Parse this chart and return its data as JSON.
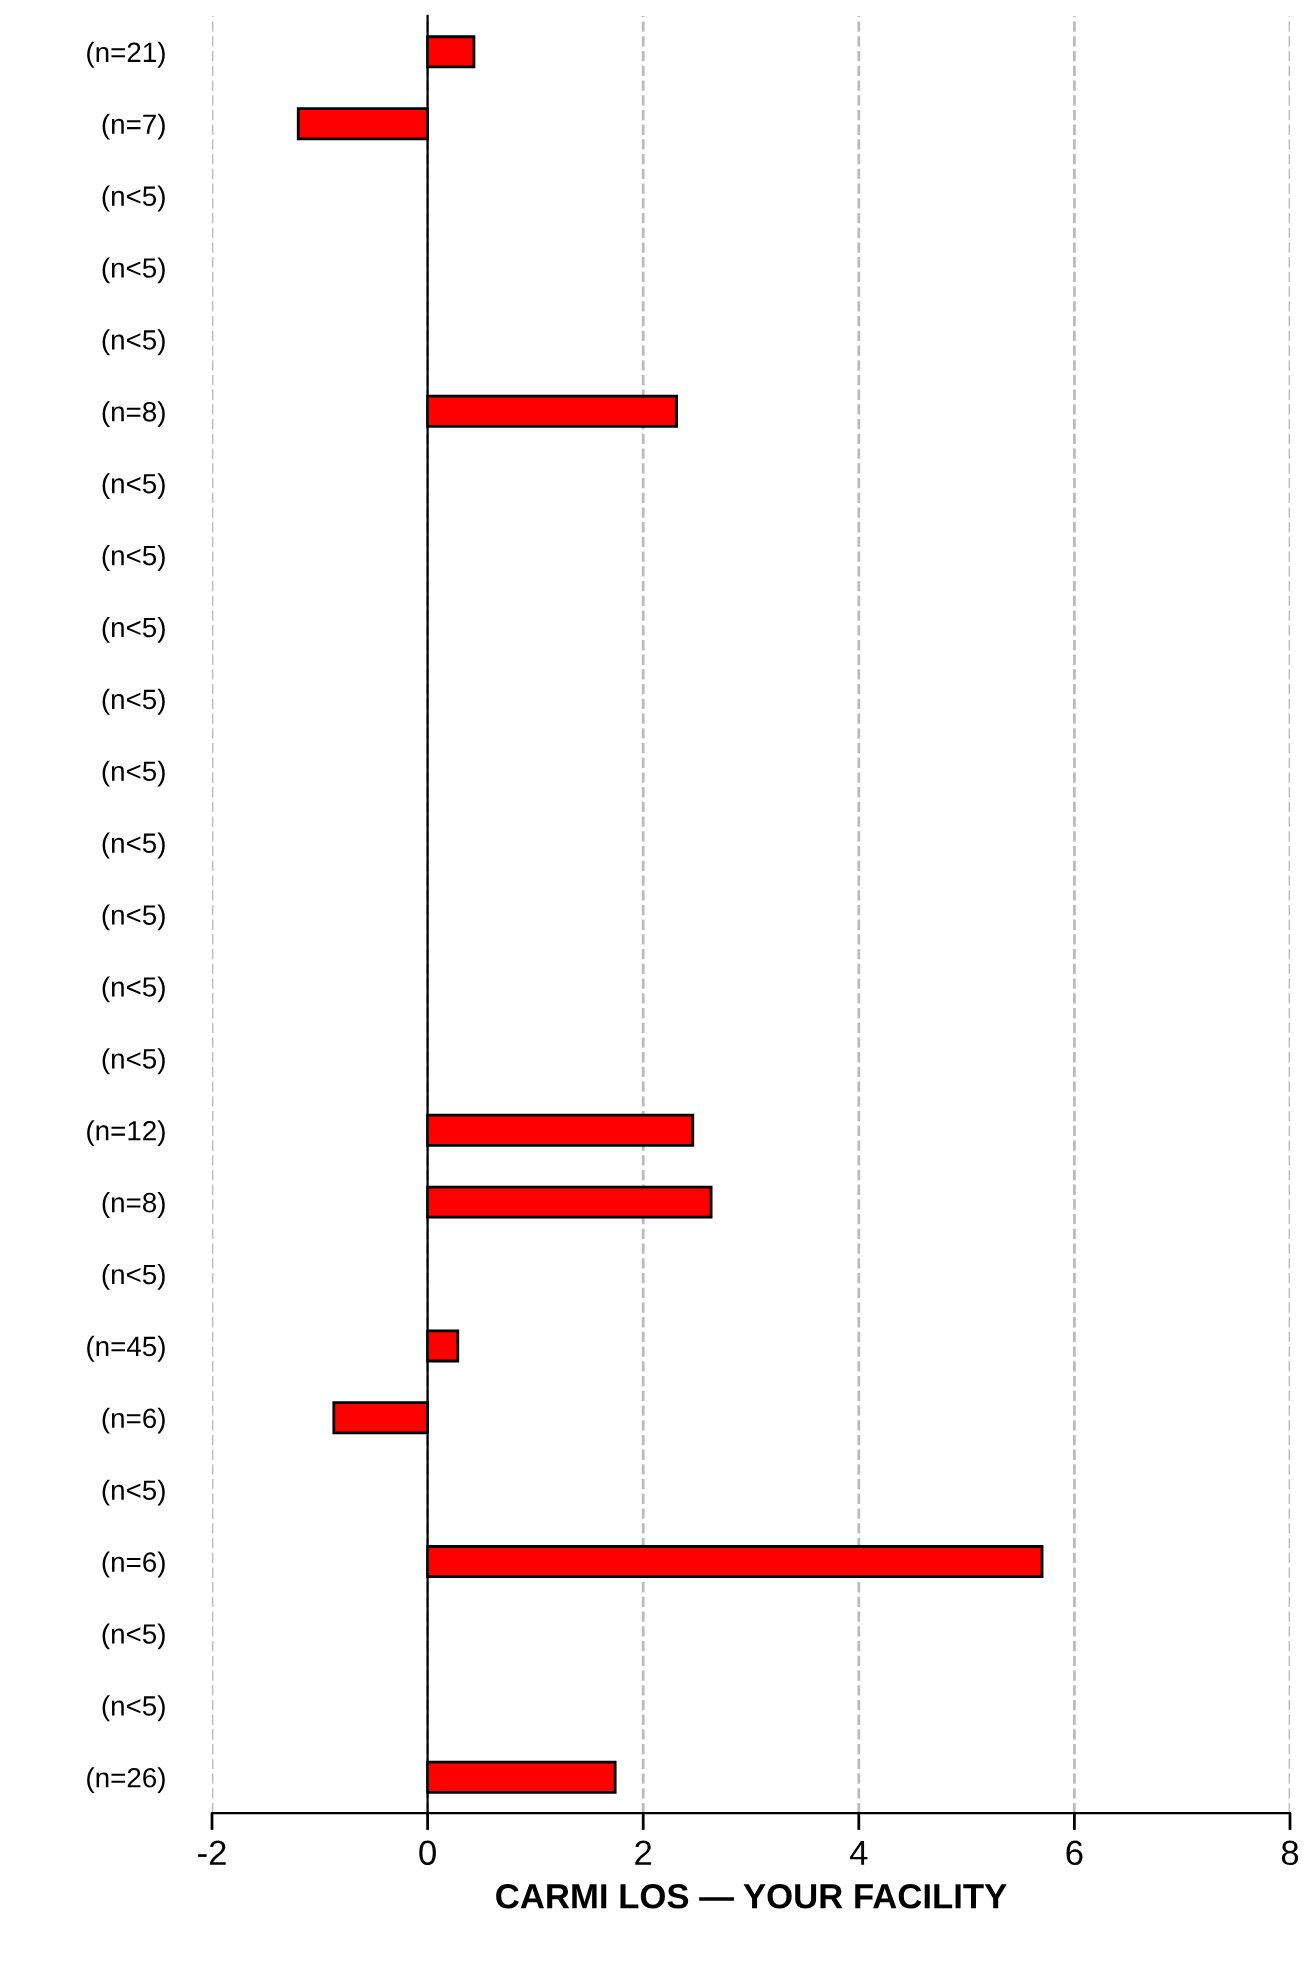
{
  "chart_data": {
    "type": "bar",
    "orientation": "horizontal",
    "xlabel": "CARMI LOS — YOUR FACILITY",
    "categories": [
      "(n=21)",
      "(n=7)",
      "(n<5)",
      "(n<5)",
      "(n<5)",
      "(n=8)",
      "(n<5)",
      "(n<5)",
      "(n<5)",
      "(n<5)",
      "(n<5)",
      "(n<5)",
      "(n<5)",
      "(n<5)",
      "(n<5)",
      "(n=12)",
      "(n=8)",
      "(n<5)",
      "(n=45)",
      "(n=6)",
      "(n<5)",
      "(n=6)",
      "(n<5)",
      "(n<5)",
      "(n=26)"
    ],
    "values": [
      0.43,
      -1.2,
      null,
      null,
      null,
      2.31,
      null,
      null,
      null,
      null,
      null,
      null,
      null,
      null,
      null,
      2.46,
      2.63,
      null,
      0.28,
      -0.87,
      null,
      5.7,
      null,
      null,
      1.74
    ],
    "color": "#ff0000",
    "xlim": [
      -2,
      8
    ],
    "xticks": [
      -2,
      0,
      2,
      4,
      6,
      8
    ],
    "grid": "x"
  }
}
